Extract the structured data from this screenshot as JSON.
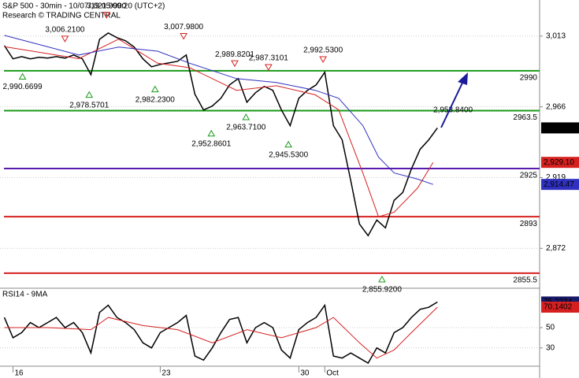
{
  "chart_data": [
    {
      "type": "line",
      "title": "S&P 500 - 30min - 10/07/19 05:09:20 (UTC+2)",
      "subtitle": "Research © TRADING CENTRAL",
      "x": [
        0,
        1,
        2,
        3,
        4,
        5,
        6,
        7,
        8,
        9,
        10,
        11,
        12,
        13,
        14,
        15,
        16,
        17,
        18,
        19,
        20,
        21,
        22,
        23,
        24,
        25,
        26,
        27,
        28,
        29,
        30,
        31,
        32,
        33,
        34,
        35,
        36,
        37,
        38,
        39,
        40,
        41,
        42,
        43,
        44,
        45,
        46,
        47,
        48,
        49,
        50
      ],
      "xlim": [
        -0.5,
        61.8
      ],
      "xticks": [
        {
          "value": 1,
          "label": "16"
        },
        {
          "value": 18,
          "label": "23"
        },
        {
          "value": 34,
          "label": "30"
        },
        {
          "value": 37,
          "label": "Oct"
        }
      ],
      "ylim": [
        2846,
        3037
      ],
      "yticks": [
        {
          "value": 2872,
          "label": "2,872"
        },
        {
          "value": 2919,
          "label": "2,919"
        },
        {
          "value": 2966,
          "label": "2,966"
        },
        {
          "value": 3013,
          "label": "3,013"
        }
      ],
      "grid": true,
      "series": [
        {
          "color": "#000000",
          "values": [
            3006.7,
            2997.9,
            2999.4,
            2997.9,
            2998.9,
            2998.4,
            2999.4,
            2998.4,
            3000.5,
            2997.9,
            2987.4,
            3010.9,
            3015.1,
            3012,
            3009.9,
            3005.7,
            2997.9,
            2992.6,
            2994.2,
            2995.2,
            2996.3,
            3000.5,
            2974.4,
            2963.9,
            2966.5,
            2971.7,
            2980.6,
            2984.8,
            2969.1,
            2975.4,
            2979.6,
            2977,
            2963.9,
            2953.5,
            2971.7,
            2977,
            2980.6,
            2989,
            2953.5,
            2944.1,
            2916.9,
            2888.2,
            2880.4,
            2890.8,
            2885.6,
            2903.9,
            2909.1,
            2924.8,
            2937.8,
            2944.1,
            2952.01
          ],
          "last_label": "2,952.01"
        },
        {
          "color": "#d62020",
          "x": [
            0,
            8.6,
            13.2,
            17.7,
            21.4,
            26.8,
            31.4,
            35.9,
            38.6,
            41.4,
            43.2,
            45,
            47.7,
            49.5
          ],
          "values": [
            3006,
            2998,
            3011,
            2995,
            2992,
            2977,
            2980,
            2974,
            2964,
            2922,
            2893,
            2896,
            2912,
            2929.1
          ],
          "last_label": "2,929.10"
        },
        {
          "color": "#3030c0",
          "x": [
            0,
            8.6,
            13.2,
            17.7,
            21.4,
            26.8,
            31.4,
            35.9,
            38.6,
            41.4,
            43.2,
            45,
            47.7,
            49.5
          ],
          "values": [
            3013.5,
            3000.5,
            3005.7,
            3003,
            2995,
            2984.8,
            2982.2,
            2977,
            2971.7,
            2953.5,
            2932.6,
            2922.1,
            2918,
            2914.47
          ],
          "last_label": "2,914.47"
        }
      ],
      "levels": [
        {
          "value": 2990,
          "color": "#1a9a1a"
        },
        {
          "value": 2963.5,
          "color": "#1a9a1a"
        },
        {
          "value": 2925,
          "color": "#5a1ab0"
        },
        {
          "value": 2893,
          "color": "#d62020"
        },
        {
          "value": 2855.5,
          "color": "#d62020"
        }
      ],
      "annotations": [
        {
          "kind": "high",
          "label": "3,006.2100",
          "x": 7,
          "y": 3006.21
        },
        {
          "kind": "high",
          "label": "3,021.9900",
          "x": 11.8,
          "y": 3021.99
        },
        {
          "kind": "high",
          "label": "3,007.9800",
          "x": 20.7,
          "y": 3007.98
        },
        {
          "kind": "high",
          "label": "2,989.8201",
          "x": 26.6,
          "y": 2989.8201
        },
        {
          "kind": "high",
          "label": "2,987.3101",
          "x": 30.5,
          "y": 2987.3101
        },
        {
          "kind": "high",
          "label": "2,992.5300",
          "x": 36.8,
          "y": 2992.53
        },
        {
          "kind": "low",
          "label": "2,990.6699",
          "x": 2.1,
          "y": 2990.6699
        },
        {
          "kind": "low",
          "label": "2,978.5701",
          "x": 9.8,
          "y": 2978.5701
        },
        {
          "kind": "low",
          "label": "2,982.2300",
          "x": 17.4,
          "y": 2982.23
        },
        {
          "kind": "low",
          "label": "2,952.8601",
          "x": 23.9,
          "y": 2952.8601
        },
        {
          "kind": "low",
          "label": "2,963.7100",
          "x": 27.9,
          "y": 2963.71
        },
        {
          "kind": "low",
          "label": "2,945.5300",
          "x": 32.8,
          "y": 2945.53
        },
        {
          "kind": "low",
          "label": "2,855.9200",
          "x": 43.6,
          "y": 2855.92
        },
        {
          "kind": "target",
          "label": "2,953.8400",
          "x": 51.8,
          "y": 2953.84
        }
      ]
    },
    {
      "type": "line",
      "title": "RSI14 - 9MA",
      "ylim": [
        12,
        88
      ],
      "yticks": [
        30,
        50
      ],
      "series": [
        {
          "color": "#000000",
          "values": [
            60,
            40,
            45,
            55,
            50,
            55,
            60,
            50,
            55,
            45,
            25,
            65,
            72,
            60,
            55,
            48,
            35,
            30,
            45,
            50,
            55,
            62,
            22,
            18,
            30,
            45,
            58,
            60,
            35,
            50,
            55,
            50,
            28,
            20,
            48,
            55,
            60,
            72,
            22,
            20,
            25,
            20,
            15,
            30,
            25,
            45,
            50,
            60,
            68,
            70,
            75.2234
          ],
          "last_label": "75.2234",
          "label_color": "#1a1a6a"
        },
        {
          "color": "#d62020",
          "x": [
            0,
            5,
            10,
            12,
            16,
            20,
            24,
            28,
            32,
            36,
            38,
            41,
            43,
            45,
            47,
            50
          ],
          "values": [
            50,
            50,
            48,
            60,
            52,
            48,
            35,
            48,
            40,
            50,
            60,
            35,
            20,
            28,
            45,
            70.1402
          ],
          "last_label": "70.1402",
          "label_color": "#d62020"
        }
      ]
    }
  ]
}
